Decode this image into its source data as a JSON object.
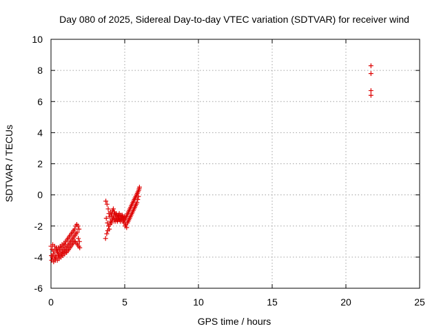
{
  "chart_data": {
    "type": "scatter",
    "title": "Day 080 of 2025, Sidereal Day-to-day VTEC variation (SDTVAR) for receiver wind",
    "xlabel": "GPS time / hours",
    "ylabel": "SDTVAR / TECUs",
    "xlim": [
      0,
      25
    ],
    "ylim": [
      -6,
      10
    ],
    "x_ticks": [
      0,
      5,
      10,
      15,
      20,
      25
    ],
    "y_ticks": [
      -6,
      -4,
      -2,
      0,
      2,
      4,
      6,
      8,
      10
    ],
    "grid": true,
    "marker": "+",
    "series": [
      {
        "color": "#dd0000",
        "points": [
          [
            0.0,
            -3.3
          ],
          [
            0.03,
            -3.9
          ],
          [
            0.05,
            -4.2
          ],
          [
            0.08,
            -3.5
          ],
          [
            0.1,
            -4.0
          ],
          [
            0.12,
            -3.2
          ],
          [
            0.15,
            -3.8
          ],
          [
            0.18,
            -4.3
          ],
          [
            0.2,
            -3.6
          ],
          [
            0.22,
            -4.1
          ],
          [
            0.25,
            -3.3
          ],
          [
            0.28,
            -3.9
          ],
          [
            0.3,
            -4.2
          ],
          [
            0.33,
            -3.5
          ],
          [
            0.35,
            -4.0
          ],
          [
            0.38,
            -3.4
          ],
          [
            0.4,
            -3.7
          ],
          [
            0.43,
            -4.2
          ],
          [
            0.45,
            -3.6
          ],
          [
            0.48,
            -3.9
          ],
          [
            0.5,
            -3.4
          ],
          [
            0.53,
            -3.8
          ],
          [
            0.55,
            -4.1
          ],
          [
            0.58,
            -3.5
          ],
          [
            0.6,
            -3.9
          ],
          [
            0.63,
            -3.3
          ],
          [
            0.65,
            -3.7
          ],
          [
            0.68,
            -4.0
          ],
          [
            0.7,
            -3.4
          ],
          [
            0.73,
            -3.8
          ],
          [
            0.75,
            -3.2
          ],
          [
            0.78,
            -3.6
          ],
          [
            0.8,
            -3.9
          ],
          [
            0.83,
            -3.3
          ],
          [
            0.85,
            -3.7
          ],
          [
            0.88,
            -3.1
          ],
          [
            0.9,
            -3.5
          ],
          [
            0.93,
            -3.8
          ],
          [
            0.95,
            -3.2
          ],
          [
            0.98,
            -3.6
          ],
          [
            1.0,
            -3.0
          ],
          [
            1.03,
            -3.4
          ],
          [
            1.05,
            -3.7
          ],
          [
            1.08,
            -2.9
          ],
          [
            1.1,
            -3.3
          ],
          [
            1.13,
            -3.6
          ],
          [
            1.15,
            -2.8
          ],
          [
            1.18,
            -3.2
          ],
          [
            1.2,
            -3.5
          ],
          [
            1.23,
            -2.7
          ],
          [
            1.25,
            -3.1
          ],
          [
            1.28,
            -3.4
          ],
          [
            1.3,
            -2.6
          ],
          [
            1.33,
            -3.0
          ],
          [
            1.35,
            -3.3
          ],
          [
            1.38,
            -2.5
          ],
          [
            1.4,
            -2.9
          ],
          [
            1.43,
            -3.2
          ],
          [
            1.45,
            -2.4
          ],
          [
            1.48,
            -2.8
          ],
          [
            1.5,
            -3.1
          ],
          [
            1.53,
            -2.3
          ],
          [
            1.55,
            -2.7
          ],
          [
            1.58,
            -3.0
          ],
          [
            1.6,
            -2.2
          ],
          [
            1.63,
            -2.6
          ],
          [
            1.65,
            -3.0
          ],
          [
            1.68,
            -2.0
          ],
          [
            1.7,
            -2.5
          ],
          [
            1.73,
            -3.1
          ],
          [
            1.75,
            -1.9
          ],
          [
            1.78,
            -2.4
          ],
          [
            1.8,
            -3.2
          ],
          [
            1.83,
            -2.0
          ],
          [
            1.85,
            -2.8
          ],
          [
            1.88,
            -3.3
          ],
          [
            1.9,
            -2.2
          ],
          [
            1.93,
            -3.0
          ],
          [
            1.95,
            -3.4
          ],
          [
            3.7,
            -2.8
          ],
          [
            3.72,
            -0.4
          ],
          [
            3.75,
            -1.5
          ],
          [
            3.78,
            -2.5
          ],
          [
            3.8,
            -0.6
          ],
          [
            3.83,
            -1.8
          ],
          [
            3.85,
            -2.3
          ],
          [
            3.88,
            -0.9
          ],
          [
            3.9,
            -2.0
          ],
          [
            3.93,
            -1.2
          ],
          [
            3.95,
            -2.2
          ],
          [
            3.98,
            -1.4
          ],
          [
            4.0,
            -1.9
          ],
          [
            4.03,
            -1.1
          ],
          [
            4.05,
            -1.7
          ],
          [
            4.08,
            -1.3
          ],
          [
            4.1,
            -1.8
          ],
          [
            4.13,
            -1.2
          ],
          [
            4.15,
            -1.6
          ],
          [
            4.18,
            -1.0
          ],
          [
            4.2,
            -1.5
          ],
          [
            4.23,
            -0.9
          ],
          [
            4.25,
            -1.4
          ],
          [
            4.28,
            -1.1
          ],
          [
            4.3,
            -1.6
          ],
          [
            4.33,
            -1.2
          ],
          [
            4.35,
            -1.7
          ],
          [
            4.38,
            -1.3
          ],
          [
            4.4,
            -1.5
          ],
          [
            4.43,
            -1.2
          ],
          [
            4.45,
            -1.6
          ],
          [
            4.48,
            -1.3
          ],
          [
            4.5,
            -1.7
          ],
          [
            4.53,
            -1.4
          ],
          [
            4.55,
            -1.6
          ],
          [
            4.58,
            -1.3
          ],
          [
            4.6,
            -1.5
          ],
          [
            4.63,
            -1.2
          ],
          [
            4.65,
            -1.6
          ],
          [
            4.68,
            -1.4
          ],
          [
            4.7,
            -1.7
          ],
          [
            4.73,
            -1.3
          ],
          [
            4.75,
            -1.5
          ],
          [
            4.78,
            -1.4
          ],
          [
            4.8,
            -1.6
          ],
          [
            4.83,
            -1.3
          ],
          [
            4.85,
            -1.5
          ],
          [
            4.88,
            -1.4
          ],
          [
            4.9,
            -1.7
          ],
          [
            4.93,
            -1.5
          ],
          [
            4.95,
            -1.8
          ],
          [
            4.98,
            -1.4
          ],
          [
            5.0,
            -1.6
          ],
          [
            5.03,
            -2.0
          ],
          [
            5.05,
            -1.5
          ],
          [
            5.08,
            -1.9
          ],
          [
            5.1,
            -1.4
          ],
          [
            5.13,
            -2.1
          ],
          [
            5.15,
            -1.3
          ],
          [
            5.18,
            -1.8
          ],
          [
            5.2,
            -1.2
          ],
          [
            5.23,
            -1.7
          ],
          [
            5.25,
            -1.1
          ],
          [
            5.28,
            -1.6
          ],
          [
            5.3,
            -1.0
          ],
          [
            5.33,
            -1.5
          ],
          [
            5.35,
            -0.9
          ],
          [
            5.38,
            -1.4
          ],
          [
            5.4,
            -0.8
          ],
          [
            5.43,
            -1.3
          ],
          [
            5.45,
            -0.7
          ],
          [
            5.48,
            -1.2
          ],
          [
            5.5,
            -0.6
          ],
          [
            5.53,
            -1.1
          ],
          [
            5.55,
            -0.5
          ],
          [
            5.58,
            -1.0
          ],
          [
            5.6,
            -0.4
          ],
          [
            5.63,
            -0.9
          ],
          [
            5.65,
            -0.3
          ],
          [
            5.68,
            -0.8
          ],
          [
            5.7,
            -0.2
          ],
          [
            5.73,
            -0.7
          ],
          [
            5.75,
            -0.1
          ],
          [
            5.78,
            -0.6
          ],
          [
            5.8,
            0.0
          ],
          [
            5.83,
            -0.5
          ],
          [
            5.85,
            0.1
          ],
          [
            5.88,
            -0.3
          ],
          [
            5.9,
            0.2
          ],
          [
            5.93,
            -0.1
          ],
          [
            5.95,
            0.3
          ],
          [
            5.98,
            0.4
          ],
          [
            6.0,
            0.5
          ],
          [
            21.7,
            8.3
          ],
          [
            21.7,
            7.8
          ],
          [
            21.7,
            6.7
          ],
          [
            21.7,
            6.4
          ]
        ]
      }
    ]
  }
}
